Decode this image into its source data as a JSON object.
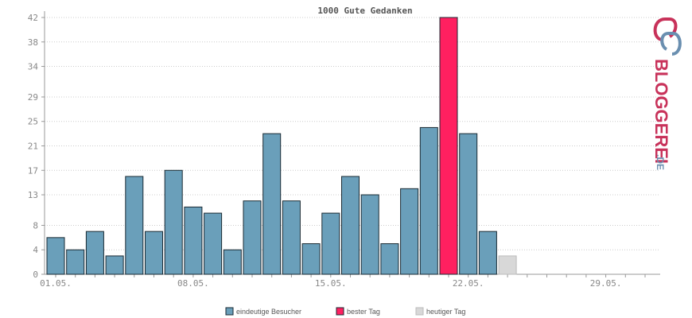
{
  "chart_data": {
    "type": "bar",
    "title": "1000 Gute Gedanken",
    "y_ticks": [
      0,
      4,
      8,
      13,
      17,
      21,
      25,
      29,
      34,
      38,
      42
    ],
    "ylim": [
      0,
      42
    ],
    "grid": true,
    "x_tick_labels": [
      "01.05.",
      "08.05.",
      "15.05.",
      "22.05.",
      "29.05."
    ],
    "x_tick_days": [
      1,
      8,
      15,
      22,
      29
    ],
    "days": [
      1,
      2,
      3,
      4,
      5,
      6,
      7,
      8,
      9,
      10,
      11,
      12,
      13,
      14,
      15,
      16,
      17,
      18,
      19,
      20,
      21,
      22,
      23,
      24
    ],
    "values": [
      6,
      4,
      7,
      3,
      16,
      7,
      17,
      11,
      10,
      4,
      12,
      23,
      12,
      5,
      10,
      16,
      13,
      5,
      14,
      24,
      42,
      23,
      7,
      3
    ],
    "kinds": [
      "normal",
      "normal",
      "normal",
      "normal",
      "normal",
      "normal",
      "normal",
      "normal",
      "normal",
      "normal",
      "normal",
      "normal",
      "normal",
      "normal",
      "normal",
      "normal",
      "normal",
      "normal",
      "normal",
      "normal",
      "best",
      "normal",
      "normal",
      "today"
    ],
    "total_days": 31,
    "colors": {
      "normal": "#6a9fba",
      "best": "#ff2060",
      "today": "#d8d8d8"
    },
    "legend": [
      {
        "key": "normal",
        "label": "eindeutige Besucher"
      },
      {
        "key": "best",
        "label": "bester Tag"
      },
      {
        "key": "today",
        "label": "heutiger Tag"
      }
    ],
    "legend_position": "bottom"
  },
  "logo": {
    "brand": "BLOGGEREI",
    "suffix": ".DE",
    "color_main": "#c8325a",
    "color_suffix": "#6a8fb0"
  }
}
